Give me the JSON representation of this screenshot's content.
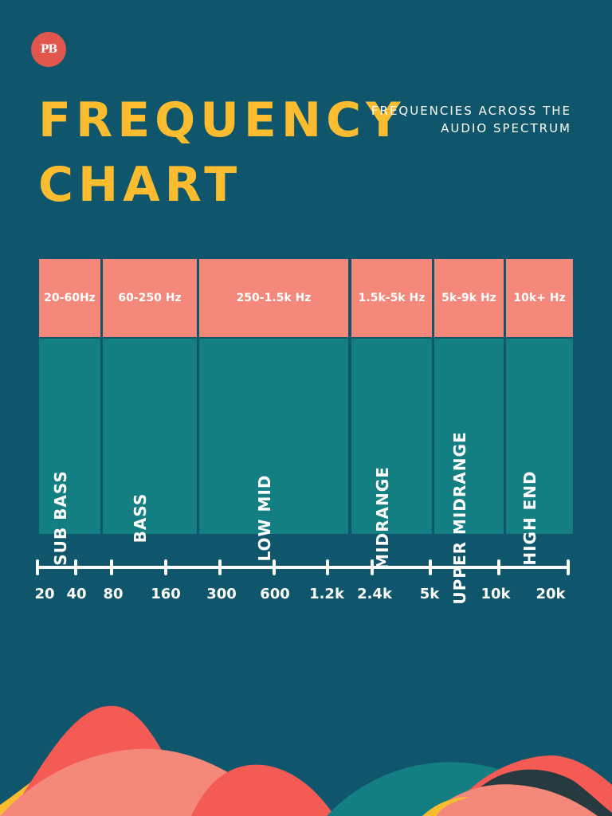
{
  "logo": {
    "text": "PB"
  },
  "title": {
    "line1": "FREQUENCY",
    "line2": "CHART"
  },
  "subtitle": {
    "line1": "FREQUENCIES ACROSS THE",
    "line2": "AUDIO SPECTRUM"
  },
  "bands": [
    {
      "range": "20-60Hz",
      "label": "SUB BASS"
    },
    {
      "range": "60-250 Hz",
      "label": "BASS"
    },
    {
      "range": "250-1.5k Hz",
      "label": "LOW MID"
    },
    {
      "range": "1.5k-5k Hz",
      "label": "MIDRANGE"
    },
    {
      "range": "5k-9k Hz",
      "label": "UPPER MIDRANGE"
    },
    {
      "range": "10k+ Hz",
      "label": "HIGH END"
    }
  ],
  "axis_ticks": [
    "20",
    "40",
    "80",
    "160",
    "300",
    "600",
    "1.2k",
    "2.4k",
    "5k",
    "10k",
    "20k"
  ],
  "colors": {
    "background": "#0f566d",
    "title": "#fbbc2f",
    "range_header": "#f4887a",
    "band": "#137f82",
    "logo": "#e1574e"
  }
}
